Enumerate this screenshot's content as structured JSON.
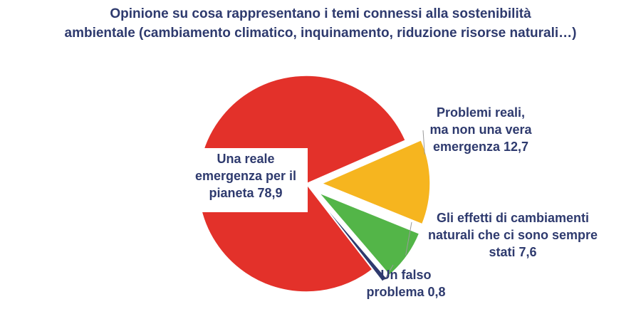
{
  "title": {
    "line1": "Opinione su cosa rappresentano i temi connessi alla sostenibilità",
    "line2": "ambientale (cambiamento climatico, inquinamento, riduzione risorse naturali…)"
  },
  "chart_data": {
    "type": "pie",
    "title": "Opinione su cosa rappresentano i temi connessi alla sostenibilità ambientale (cambiamento climatico, inquinamento, riduzione risorse naturali…)",
    "slices": [
      {
        "label_lines": [
          "Una reale",
          "emergenza per il",
          "pianeta 78,9"
        ],
        "value": 78.9,
        "color": "#e3312a"
      },
      {
        "label_lines": [
          "Problemi reali,",
          "ma non una vera",
          "emergenza 12,7"
        ],
        "value": 12.7,
        "color": "#f6b51f"
      },
      {
        "label_lines": [
          "Gli effetti di cambiamenti",
          "naturali che ci sono sempre",
          "stati 7,6"
        ],
        "value": 7.6,
        "color": "#53b548"
      },
      {
        "label_lines": [
          "Un falso",
          "problema 0,8"
        ],
        "value": 0.8,
        "color": "#2e3a6e"
      }
    ],
    "exploded_slices": [
      1,
      2,
      3
    ],
    "legend": "none",
    "label_placement": "outside with leader lines; first label inside white box"
  }
}
